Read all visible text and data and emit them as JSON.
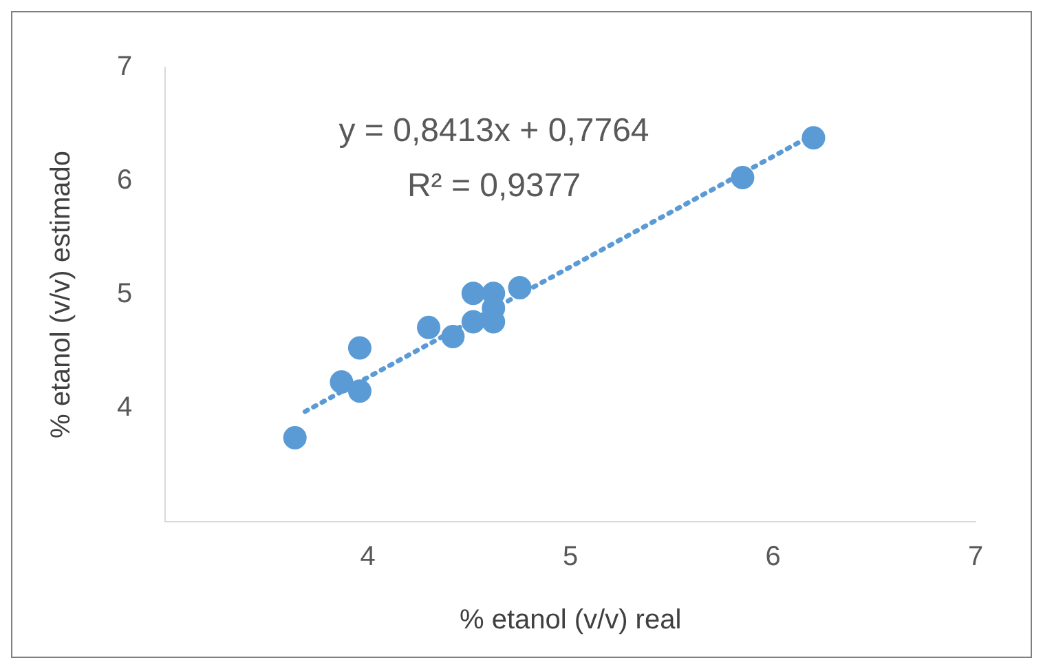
{
  "chart_data": {
    "type": "scatter",
    "xlabel": "% etanol (v/v) real",
    "ylabel": "% etanol (v/v) estimado",
    "xlim": [
      3,
      7
    ],
    "ylim": [
      3,
      7
    ],
    "xticks": [
      {
        "value": 3,
        "label": null
      },
      4,
      5,
      6,
      7
    ],
    "yticks": [
      {
        "value": 3,
        "label": null
      },
      4,
      5,
      6,
      7
    ],
    "grid": false,
    "legend": false,
    "marker": "circle",
    "annotations": [
      "y = 0,8413x + 0,7764",
      "R² = 0,9377"
    ],
    "series": [
      {
        "color": "#5b9bd5",
        "x": [
          3.64,
          3.87,
          3.96,
          3.96,
          4.3,
          4.42,
          4.52,
          4.52,
          4.62,
          4.62,
          4.62,
          4.75,
          5.85,
          6.2
        ],
        "values": [
          3.74,
          4.23,
          4.53,
          4.15,
          4.71,
          4.63,
          5.01,
          4.76,
          5.01,
          4.88,
          4.76,
          5.06,
          6.03,
          6.38
        ]
      },
      {
        "type": "line",
        "color": "#5b9bd5",
        "line_style": "dotted",
        "marker": "none",
        "x": [
          3.69,
          6.2
        ],
        "values": [
          3.97,
          6.41
        ]
      }
    ]
  }
}
